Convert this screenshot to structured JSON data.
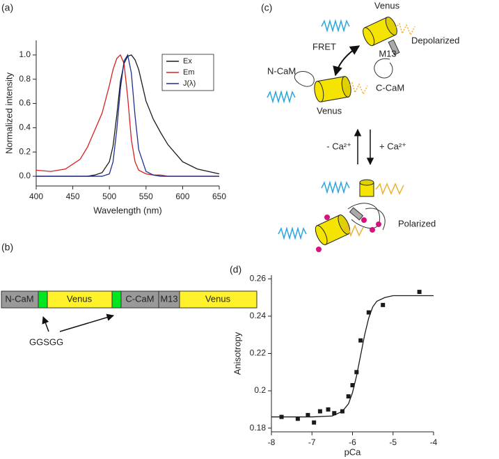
{
  "panels": [
    "(a)",
    "(b)",
    "(c)",
    "(d)"
  ],
  "chart_data": [
    {
      "type": "line",
      "xlabel": "Wavelength (nm)",
      "ylabel": "Normalized intensity",
      "x": [
        400,
        420,
        440,
        460,
        470,
        480,
        490,
        500,
        505,
        510,
        515,
        520,
        525,
        530,
        535,
        540,
        550,
        560,
        570,
        580,
        600,
        620,
        650
      ],
      "series": [
        {
          "name": "Ex",
          "color": "#1a1a1a",
          "values": [
            0,
            0,
            0,
            0,
            0,
            0.01,
            0.03,
            0.12,
            0.25,
            0.5,
            0.78,
            0.93,
            0.99,
            1.0,
            0.96,
            0.88,
            0.62,
            0.47,
            0.36,
            0.26,
            0.12,
            0.06,
            0.02
          ]
        },
        {
          "name": "Em",
          "color": "#d62020",
          "values": [
            0.05,
            0.04,
            0.06,
            0.14,
            0.24,
            0.38,
            0.52,
            0.75,
            0.88,
            0.97,
            1.0,
            0.93,
            0.65,
            0.3,
            0.12,
            0.05,
            0.02,
            0.01,
            0.01,
            0,
            0,
            0,
            0
          ]
        },
        {
          "name": "J(λ)",
          "color": "#1f2f8f",
          "values": [
            0,
            0,
            0,
            0,
            0,
            0,
            0,
            0.02,
            0.12,
            0.38,
            0.72,
            0.95,
            1.0,
            0.85,
            0.5,
            0.22,
            0.04,
            0.01,
            0,
            0,
            0,
            0,
            0
          ]
        }
      ],
      "xlim": [
        400,
        650
      ],
      "ylim": [
        -0.08,
        1.12
      ],
      "xticks": [
        400,
        450,
        500,
        550,
        600,
        650
      ],
      "yticks": [
        {
          "value": 0,
          "label": "0.0"
        },
        0.2,
        0.4,
        0.6,
        0.8,
        {
          "value": 1,
          "label": "1.0"
        }
      ],
      "legend": "upper right"
    },
    {
      "type": "scatter",
      "xlabel": "pCa",
      "ylabel": "Anisotropy",
      "series": [
        {
          "style": "markers",
          "color": "#1a1a1a",
          "x": [
            -7.75,
            -7.35,
            -7.1,
            -6.95,
            -6.8,
            -6.6,
            -6.45,
            -6.25,
            -6.1,
            -6.0,
            -5.9,
            -5.8,
            -5.6,
            -5.25,
            -4.35
          ],
          "values": [
            0.186,
            0.185,
            0.187,
            0.183,
            0.189,
            0.19,
            0.188,
            0.189,
            0.197,
            0.203,
            0.21,
            0.227,
            0.242,
            0.246,
            0.253
          ]
        },
        {
          "style": "line",
          "color": "#1a1a1a",
          "x": [
            -8,
            -7,
            -6.5,
            -6.25,
            -6.1,
            -6,
            -5.9,
            -5.8,
            -5.7,
            -5.6,
            -5.5,
            -5.4,
            -5.2,
            -5,
            -4.5,
            -4
          ],
          "values": [
            0.186,
            0.186,
            0.1865,
            0.189,
            0.193,
            0.199,
            0.208,
            0.219,
            0.23,
            0.239,
            0.245,
            0.248,
            0.25,
            0.251,
            0.251,
            0.251
          ]
        }
      ],
      "xlim": [
        -8,
        -4
      ],
      "ylim": [
        0.178,
        0.262
      ],
      "xticks": [
        -8,
        -7,
        -6,
        -5,
        -4
      ],
      "yticks": [
        0.18,
        0.2,
        0.22,
        0.24,
        0.26
      ]
    }
  ],
  "construct": {
    "segments": [
      "N-CaM",
      "Venus",
      "C-CaM",
      "M13",
      "Venus"
    ],
    "linker": "GGSGG"
  },
  "diagram": {
    "venus_top": "Venus",
    "fret": "FRET",
    "m13": "M13",
    "depolarized": "Depolarized",
    "n_cam": "N-CaM",
    "c_cam": "C-CaM",
    "venus_bottom": "Venus",
    "minus_ca": "- Ca²⁺",
    "plus_ca": "+ Ca²⁺",
    "polarized": "Polarized"
  }
}
